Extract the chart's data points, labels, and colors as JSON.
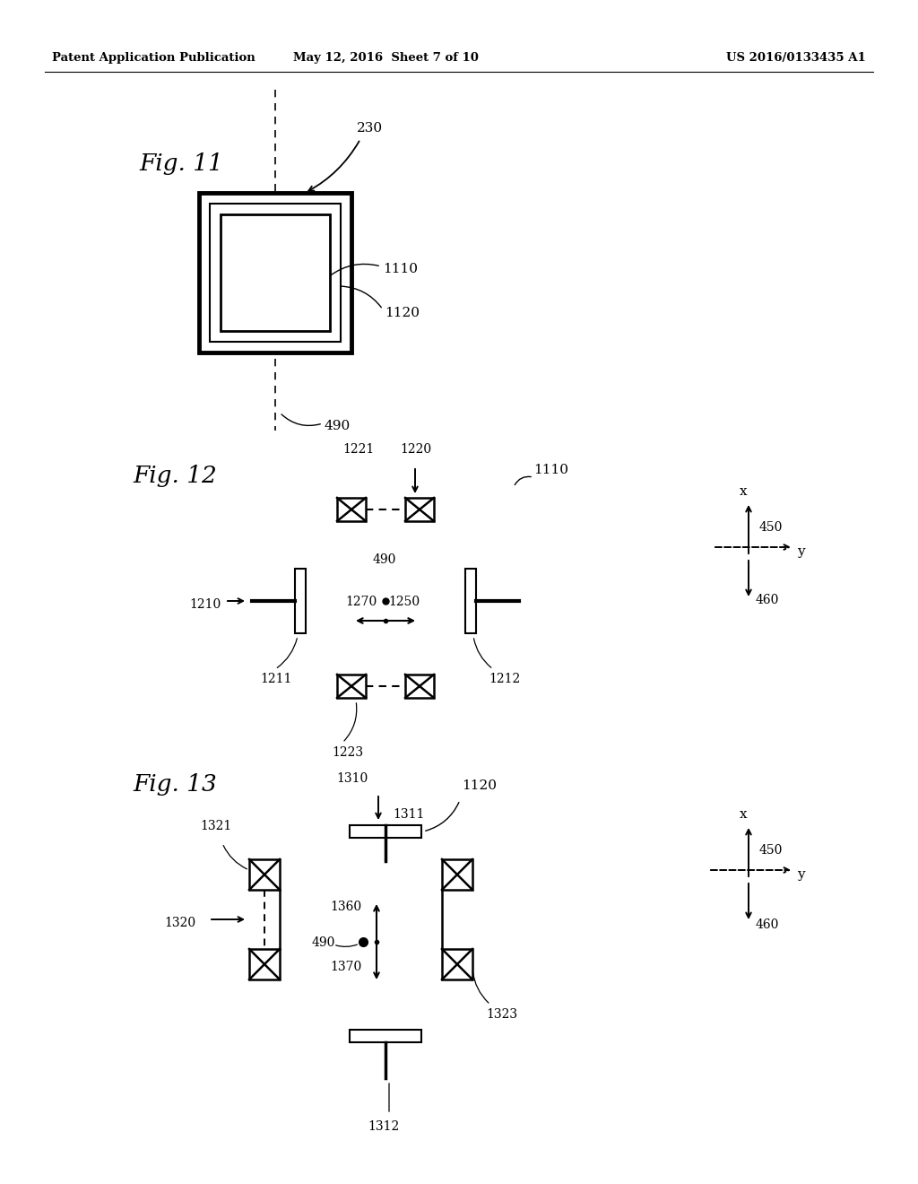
{
  "bg_color": "#ffffff",
  "text_color": "#000000",
  "header_left": "Patent Application Publication",
  "header_mid": "May 12, 2016  Sheet 7 of 10",
  "header_right": "US 2016/0133435 A1",
  "fig11_label": "Fig. 11",
  "fig12_label": "Fig. 12",
  "fig13_label": "Fig. 13",
  "line_color": "#000000",
  "lw_thin": 1.0,
  "lw_med": 1.5,
  "lw_thick": 2.5,
  "lw_heaviest": 3.5
}
